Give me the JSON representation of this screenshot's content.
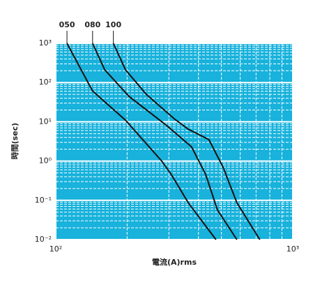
{
  "chart_data": {
    "type": "line",
    "x_label": "電流(A)rms",
    "y_label": "時間(sec)",
    "log_x": true,
    "log_y": true,
    "grid": true,
    "background": "#18b2dc",
    "xlim": [
      100,
      1000
    ],
    "ylim": [
      0.01,
      1000
    ],
    "xticks": [
      {
        "value": 100,
        "label": "10²"
      },
      {
        "value": 1000,
        "label": "10³"
      }
    ],
    "yticks": [
      {
        "value": 0.01,
        "label": "10⁻²"
      },
      {
        "value": 0.1,
        "label": "10⁻¹"
      },
      {
        "value": 1,
        "label": "10⁰"
      },
      {
        "value": 10,
        "label": "10¹"
      },
      {
        "value": 100,
        "label": "10²"
      },
      {
        "value": 1000,
        "label": "10³"
      }
    ],
    "series": [
      {
        "name": "050",
        "color": "#111111",
        "x": [
          111.5,
          143,
          197,
          280,
          307,
          362,
          474
        ],
        "values": [
          1000,
          61,
          11,
          1.0,
          0.46,
          0.087,
          0.01
        ]
      },
      {
        "name": "080",
        "color": "#111111",
        "x": [
          143,
          161,
          204,
          295,
          374,
          429,
          481,
          581
        ],
        "values": [
          1000,
          211,
          44,
          7.9,
          2.3,
          0.46,
          0.057,
          0.01
        ]
      },
      {
        "name": "100",
        "color": "#111111",
        "x": [
          175,
          197,
          241,
          316,
          362,
          443,
          509,
          581,
          726
        ],
        "values": [
          1000,
          211,
          50,
          12,
          6.5,
          3.5,
          0.68,
          0.087,
          0.01
        ]
      }
    ]
  }
}
